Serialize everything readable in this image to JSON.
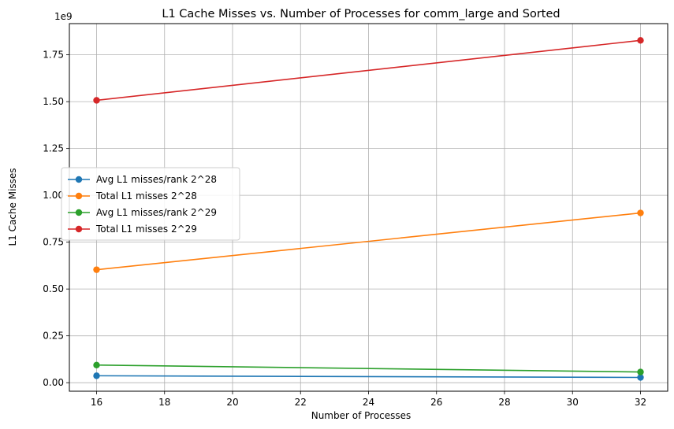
{
  "chart_data": {
    "type": "line",
    "title": "L1 Cache Misses vs. Number of Processes for comm_large and Sorted",
    "xlabel": "Number of Processes",
    "ylabel": "L1 Cache Misses",
    "y_offset_label": "1e9",
    "xlim": [
      15.2,
      32.8
    ],
    "ylim": [
      -0.0455,
      1.9165
    ],
    "x_ticks": [
      16,
      18,
      20,
      22,
      24,
      26,
      28,
      30,
      32
    ],
    "x_tick_labels": [
      "16",
      "18",
      "20",
      "22",
      "24",
      "26",
      "28",
      "30",
      "32"
    ],
    "y_ticks": [
      0.0,
      0.25,
      0.5,
      0.75,
      1.0,
      1.25,
      1.5,
      1.75
    ],
    "y_tick_labels": [
      "0.00",
      "0.25",
      "0.50",
      "0.75",
      "1.00",
      "1.25",
      "1.50",
      "1.75"
    ],
    "grid": true,
    "legend_position": "center-left",
    "x": [
      16,
      32
    ],
    "series": [
      {
        "name": "Avg L1 misses/rank 2^28",
        "values": [
          0.037,
          0.028
        ],
        "color": "#1f77b4"
      },
      {
        "name": "Total L1 misses 2^28",
        "values": [
          0.603,
          0.906
        ],
        "color": "#ff7f0e"
      },
      {
        "name": "Avg L1 misses/rank 2^29",
        "values": [
          0.094,
          0.057
        ],
        "color": "#2ca02c"
      },
      {
        "name": "Total L1 misses 2^29",
        "values": [
          1.507,
          1.827
        ],
        "color": "#d62728"
      }
    ]
  }
}
